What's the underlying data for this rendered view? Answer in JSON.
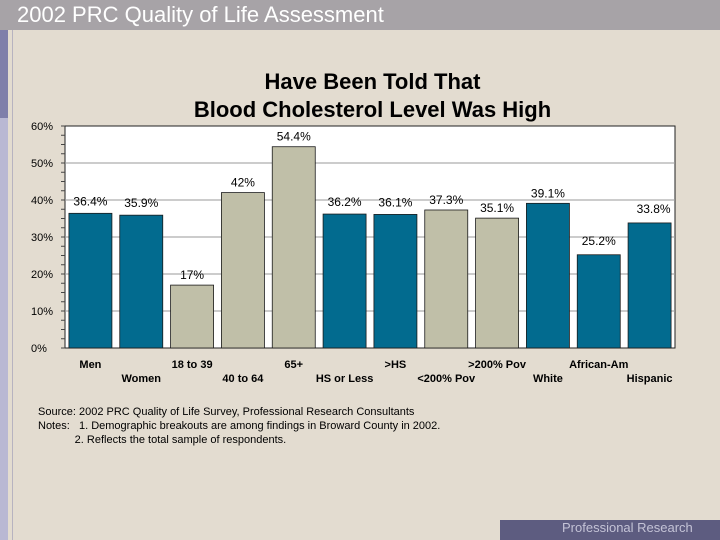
{
  "header": {
    "title": "2002 PRC Quality of Life Assessment"
  },
  "chart_data": {
    "type": "bar",
    "title_lines": [
      "Have Been Told That",
      "Blood Cholesterol Level Was High"
    ],
    "categories": [
      "Men",
      "Women",
      "18 to 39",
      "40 to 64",
      "65+",
      "HS or Less",
      ">HS",
      "<200% Pov",
      ">200% Pov",
      "White",
      "African-Am",
      "Hispanic"
    ],
    "values": [
      36.4,
      35.9,
      17,
      42,
      54.4,
      36.2,
      36.1,
      37.3,
      35.1,
      39.1,
      25.2,
      33.8
    ],
    "value_labels": [
      "36.4%",
      "35.9%",
      "17%",
      "42%",
      "54.4%",
      "36.2%",
      "36.1%",
      "37.3%",
      "35.1%",
      "39.1%",
      "25.2%",
      "33.8%"
    ],
    "groups": [
      "sex",
      "sex",
      "age",
      "age",
      "age",
      "edu",
      "edu",
      "pov",
      "pov",
      "race",
      "race",
      "race"
    ],
    "colors": {
      "blue": "#026b8f",
      "tan": "#c0bfa8"
    },
    "bar_colors": [
      "#026b8f",
      "#026b8f",
      "#c0bfa8",
      "#c0bfa8",
      "#c0bfa8",
      "#026b8f",
      "#026b8f",
      "#c0bfa8",
      "#c0bfa8",
      "#026b8f",
      "#026b8f",
      "#026b8f"
    ],
    "ylim": [
      0,
      60
    ],
    "yticks": [
      0,
      10,
      20,
      30,
      40,
      50,
      60
    ],
    "ytick_labels": [
      "0%",
      "10%",
      "20%",
      "30%",
      "40%",
      "50%",
      "60%"
    ],
    "grid": true,
    "xlabel": "",
    "ylabel": ""
  },
  "notes": {
    "source": "Source: 2002 PRC Quality of Life Survey, Professional Research Consultants",
    "note1": "Notes:   1. Demographic breakouts are among findings in Broward County in 2002.",
    "note2": "            2. Reflects the total sample of respondents."
  },
  "footer": {
    "text": "Professional Research Consultants"
  }
}
